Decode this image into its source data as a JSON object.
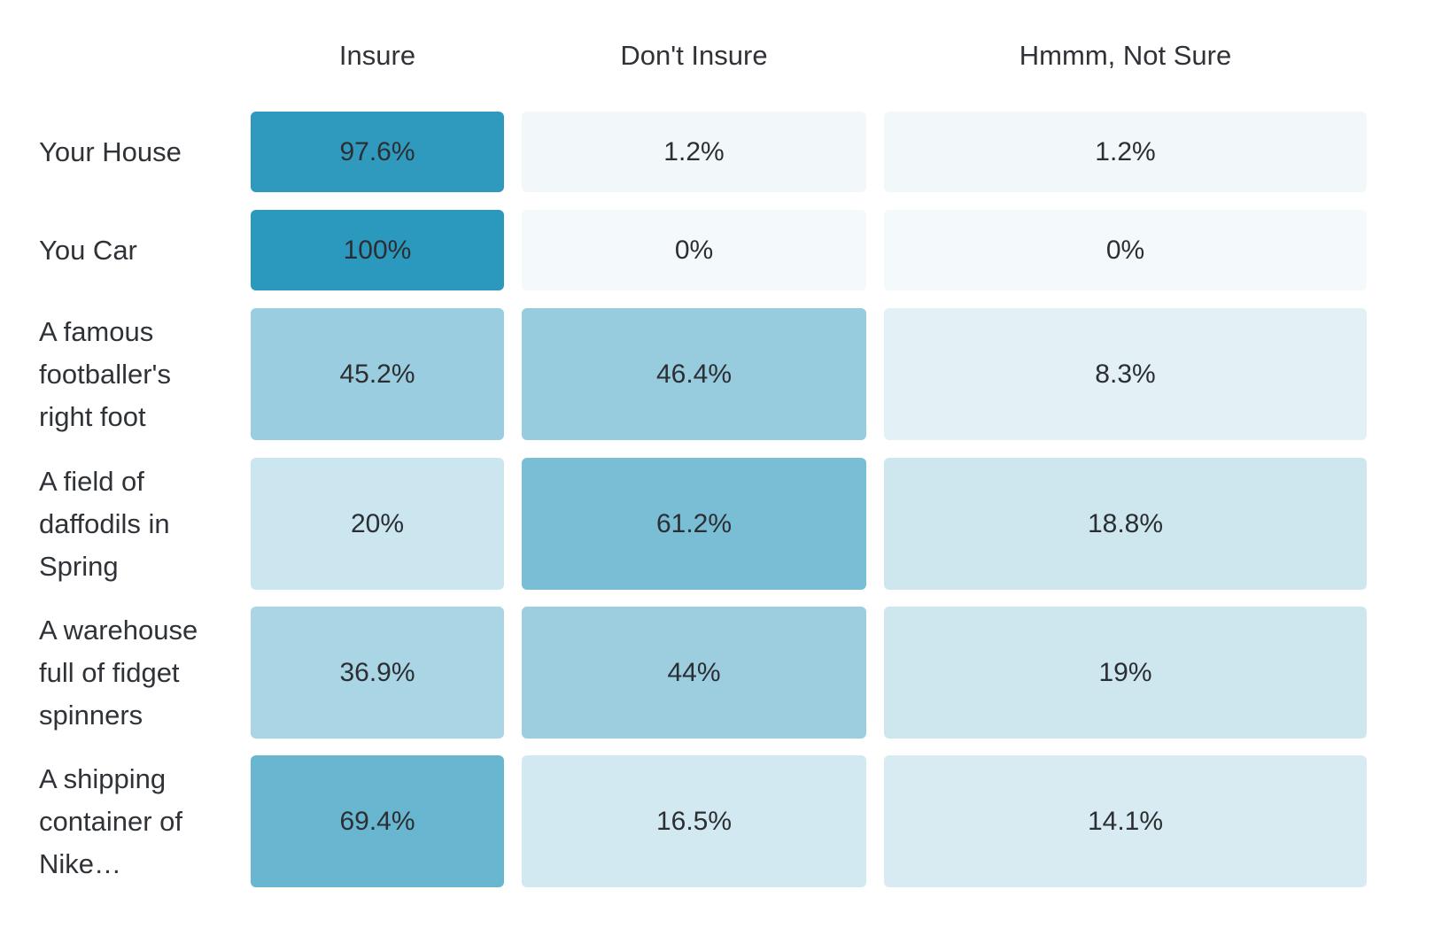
{
  "chart_data": {
    "type": "heatmap",
    "columns": [
      "Insure",
      "Don't Insure",
      "Hmmm, Not Sure"
    ],
    "rows": [
      {
        "label": "Your House",
        "values": [
          97.6,
          1.2,
          1.2
        ],
        "labels": [
          "97.6%",
          "1.2%",
          "1.2%"
        ]
      },
      {
        "label": "You Car",
        "values": [
          100,
          0,
          0
        ],
        "labels": [
          "100%",
          "0%",
          "0%"
        ]
      },
      {
        "label": "A famous footballer's right foot",
        "values": [
          45.2,
          46.4,
          8.3
        ],
        "labels": [
          "45.2%",
          "46.4%",
          "8.3%"
        ]
      },
      {
        "label": "A field of daffodils in Spring",
        "values": [
          20,
          61.2,
          18.8
        ],
        "labels": [
          "20%",
          "61.2%",
          "18.8%"
        ]
      },
      {
        "label": "A warehouse full of fidget spinners",
        "values": [
          36.9,
          44,
          19
        ],
        "labels": [
          "36.9%",
          "44%",
          "19%"
        ]
      },
      {
        "label": "A shipping container of Nike…",
        "values": [
          69.4,
          16.5,
          14.1
        ],
        "labels": [
          "69.4%",
          "16.5%",
          "14.1%"
        ]
      }
    ],
    "value_range": [
      0,
      100
    ],
    "colors": {
      "low": "#f4f9fb",
      "high": "#2b98bd"
    }
  }
}
